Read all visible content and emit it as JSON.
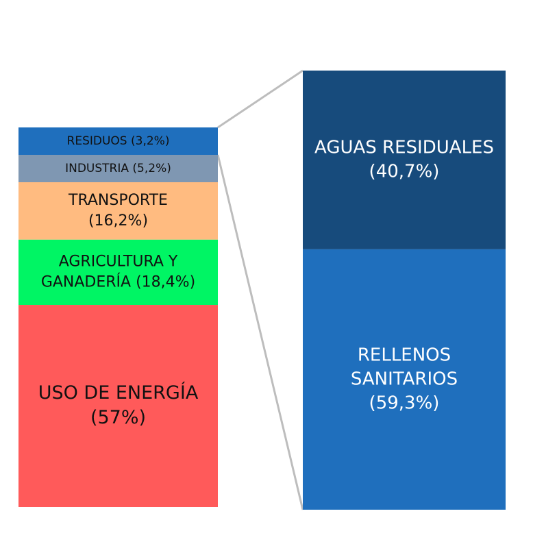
{
  "chart_data": {
    "type": "bar-of-bar",
    "main_bar": {
      "segments": [
        {
          "lines": [
            "RESIDUOS (3,2%)"
          ],
          "value": 3.2,
          "color": "#1f6fbd"
        },
        {
          "lines": [
            "INDUSTRIA (5,2%)"
          ],
          "value": 5.2,
          "color": "#7f97b2"
        },
        {
          "lines": [
            "TRANSPORTE",
            "(16,2%)"
          ],
          "value": 16.2,
          "color": "#ffbb80"
        },
        {
          "lines": [
            "AGRICULTURA Y",
            "GANADERÍA (18,4%)"
          ],
          "value": 18.4,
          "color": "#00f564"
        },
        {
          "lines": [
            "USO DE ENERGÍA",
            "(57%)"
          ],
          "value": 57,
          "color": "#ff5a5a"
        }
      ]
    },
    "breakdown_bar": {
      "of_segment": "RESIDUOS (3,2%)",
      "segments": [
        {
          "lines": [
            "AGUAS RESIDUALES",
            "(40,7%)"
          ],
          "value": 40.7,
          "color": "#174b7c"
        },
        {
          "lines": [
            "RELLENOS",
            "SANITARIOS",
            "(59,3%)"
          ],
          "value": 59.3,
          "color": "#1f6fbd"
        }
      ]
    },
    "connector_color": "#bdbdbd"
  }
}
